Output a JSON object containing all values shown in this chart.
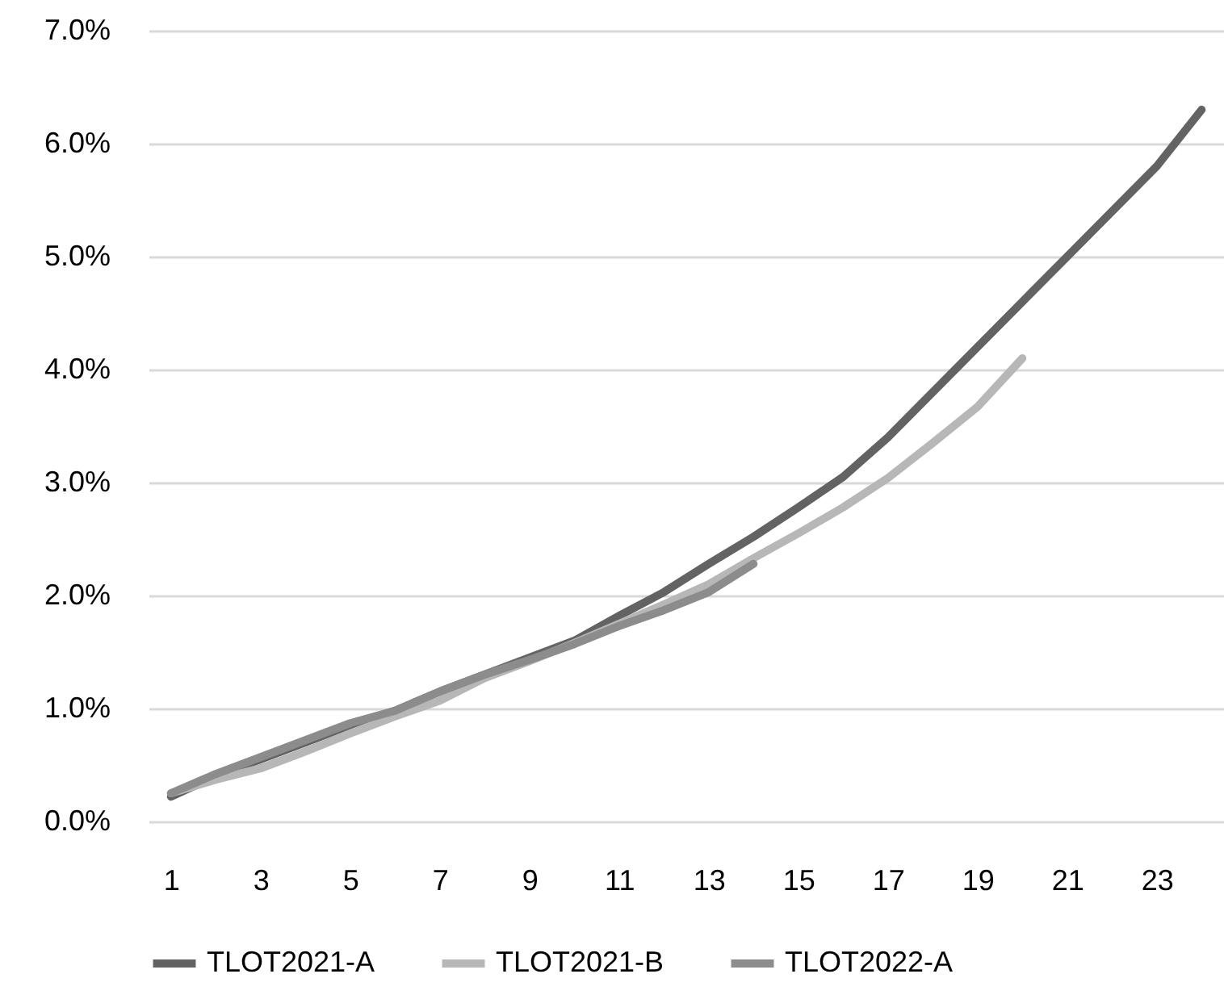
{
  "chart_data": {
    "type": "line",
    "x": [
      1,
      2,
      3,
      4,
      5,
      6,
      7,
      8,
      9,
      10,
      11,
      12,
      13,
      14,
      15,
      16,
      17,
      18,
      19,
      20,
      21,
      22,
      23,
      24
    ],
    "xlim": [
      0.5,
      24.5
    ],
    "xticks": [
      1,
      3,
      5,
      7,
      9,
      11,
      13,
      15,
      17,
      19,
      21,
      23
    ],
    "ylim": [
      0,
      7
    ],
    "yticks": [
      {
        "value": 0,
        "label": "0.0%"
      },
      {
        "value": 1,
        "label": "1.0%"
      },
      {
        "value": 2,
        "label": "2.0%"
      },
      {
        "value": 3,
        "label": "3.0%"
      },
      {
        "value": 4,
        "label": "4.0%"
      },
      {
        "value": 5,
        "label": "5.0%"
      },
      {
        "value": 6,
        "label": "6.0%"
      },
      {
        "value": 7,
        "label": "7.0%"
      }
    ],
    "grid": "y",
    "legend": "bottom",
    "marker": "none",
    "line_style": "solid",
    "series": [
      {
        "name": "TLOT2021-A",
        "color": "#636363",
        "values": [
          0.22,
          0.4,
          0.55,
          0.7,
          0.85,
          0.98,
          1.15,
          1.3,
          1.45,
          1.6,
          1.82,
          2.03,
          2.28,
          2.52,
          2.78,
          3.05,
          3.4,
          3.8,
          4.2,
          4.6,
          5.0,
          5.4,
          5.8,
          6.3
        ]
      },
      {
        "name": "TLOT2021-B",
        "color": "#b7b7b7",
        "values": [
          0.25,
          0.37,
          0.47,
          0.62,
          0.78,
          0.93,
          1.07,
          1.27,
          1.42,
          1.58,
          1.75,
          1.92,
          2.1,
          2.33,
          2.55,
          2.78,
          3.04,
          3.35,
          3.67,
          4.1,
          null,
          null,
          null,
          null
        ]
      },
      {
        "name": "TLOT2022-A",
        "color": "#8c8c8c",
        "values": [
          0.25,
          0.42,
          0.57,
          0.72,
          0.87,
          0.98,
          1.15,
          1.3,
          1.43,
          1.57,
          1.73,
          1.87,
          2.03,
          2.28,
          null,
          null,
          null,
          null,
          null,
          null,
          null,
          null,
          null,
          null
        ]
      }
    ]
  }
}
